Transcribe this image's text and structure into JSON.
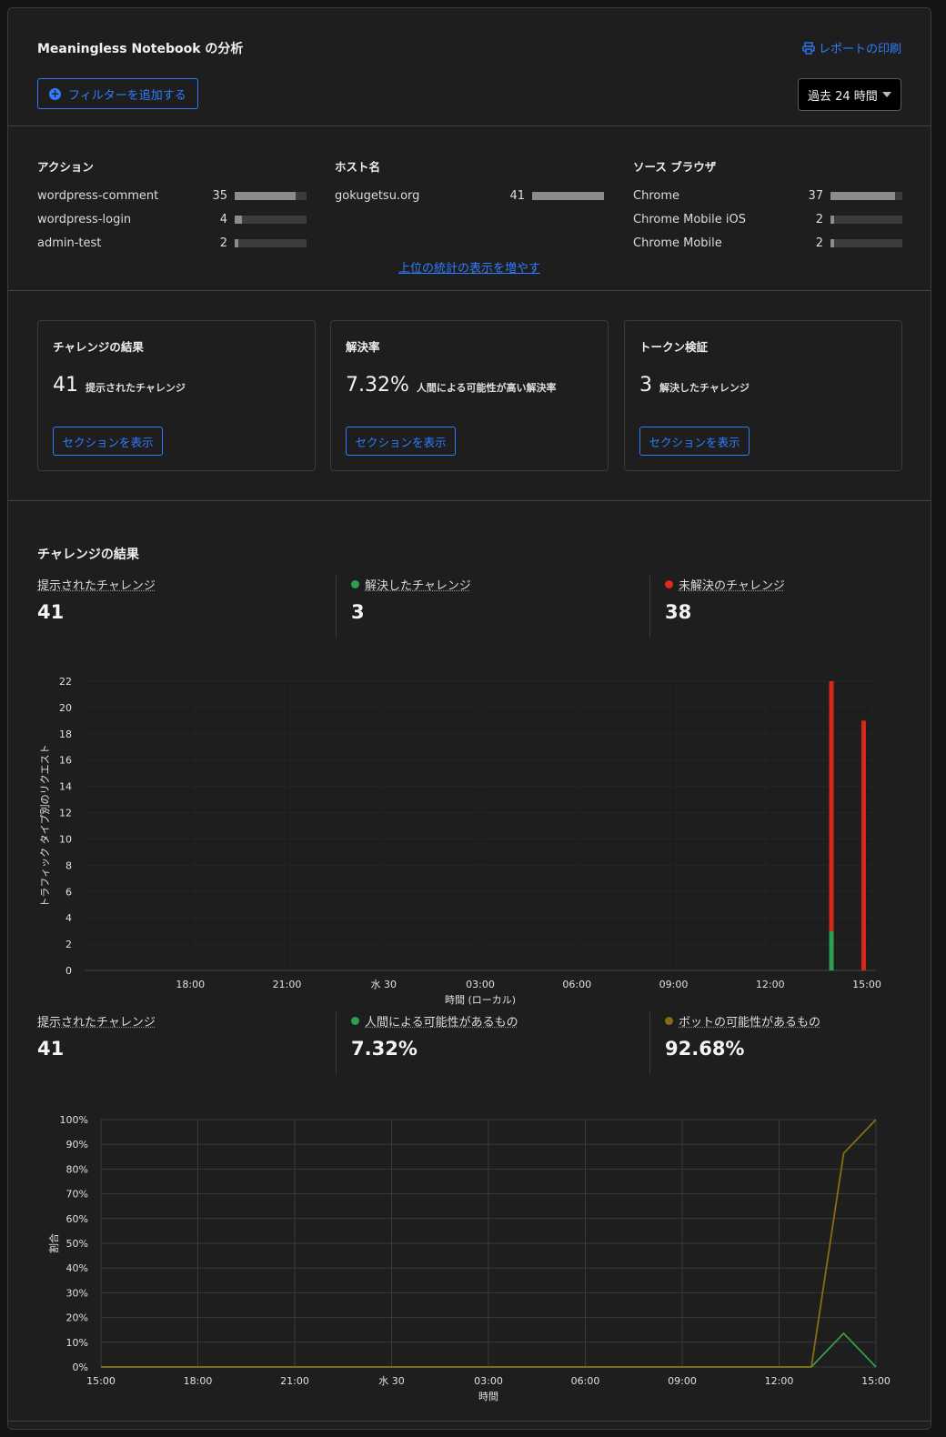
{
  "header": {
    "title": "Meaningless Notebook の分析",
    "print_label": "レポートの印刷",
    "add_filter_label": "フィルターを追加する",
    "time_range": "過去 24 時間"
  },
  "top_stats": {
    "columns": [
      {
        "title": "アクション",
        "rows": [
          {
            "name": "wordpress-comment",
            "count": "35",
            "share": 0.85
          },
          {
            "name": "wordpress-login",
            "count": "4",
            "share": 0.1
          },
          {
            "name": "admin-test",
            "count": "2",
            "share": 0.05
          }
        ]
      },
      {
        "title": "ホスト名",
        "rows": [
          {
            "name": "gokugetsu.org",
            "count": "41",
            "share": 1.0
          }
        ]
      },
      {
        "title": "ソース ブラウザ",
        "rows": [
          {
            "name": "Chrome",
            "count": "37",
            "share": 0.9
          },
          {
            "name": "Chrome Mobile iOS",
            "count": "2",
            "share": 0.05
          },
          {
            "name": "Chrome Mobile",
            "count": "2",
            "share": 0.05
          }
        ]
      }
    ],
    "more_label": "上位の統計の表示を増やす"
  },
  "cards": [
    {
      "title": "チャレンジの結果",
      "value": "41",
      "desc": "提示されたチャレンジ",
      "button": "セクションを表示"
    },
    {
      "title": "解決率",
      "value": "7.32%",
      "desc": "人間による可能性が高い解決率",
      "button": "セクションを表示"
    },
    {
      "title": "トークン検証",
      "value": "3",
      "desc": "解決したチャレンジ",
      "button": "セクションを表示"
    }
  ],
  "section": {
    "title": "チャレンジの結果",
    "kpis1": [
      {
        "label": "提示されたチャレンジ",
        "value": "41",
        "color": ""
      },
      {
        "label": "解決したチャレンジ",
        "value": "3",
        "color": "#2e9e4f"
      },
      {
        "label": "未解決のチャレンジ",
        "value": "38",
        "color": "#e02a1b"
      }
    ],
    "kpis2": [
      {
        "label": "提示されたチャレンジ",
        "value": "41",
        "color": ""
      },
      {
        "label": "人間による可能性があるもの",
        "value": "7.32%",
        "color": "#2e9e4f"
      },
      {
        "label": "ボットの可能性があるもの",
        "value": "92.68%",
        "color": "#8a6a14"
      }
    ]
  },
  "chart_data": [
    {
      "type": "bar",
      "stacked": true,
      "ylabel": "トラフィック タイプ別のリクエスト",
      "xlabel": "時間 (ローカル)",
      "ylim": [
        0,
        22
      ],
      "yticks": [
        0,
        2,
        4,
        6,
        8,
        10,
        12,
        14,
        16,
        18,
        20,
        22
      ],
      "x_range_hours": [
        15,
        39
      ],
      "xticks": [
        {
          "h": 18,
          "label": "18:00"
        },
        {
          "h": 21,
          "label": "21:00"
        },
        {
          "h": 24,
          "label": "水 30"
        },
        {
          "h": 27,
          "label": "03:00"
        },
        {
          "h": 30,
          "label": "06:00"
        },
        {
          "h": 33,
          "label": "09:00"
        },
        {
          "h": 36,
          "label": "12:00"
        },
        {
          "h": 39,
          "label": "15:00"
        }
      ],
      "bars": [
        {
          "h": 37.9,
          "solved": 3,
          "unsolved": 19
        },
        {
          "h": 38.9,
          "solved": 0,
          "unsolved": 19
        }
      ],
      "colors": {
        "solved": "#2e9e4f",
        "unsolved": "#d9261a"
      }
    },
    {
      "type": "line",
      "ylabel": "割合",
      "xlabel": "時間",
      "ylim": [
        0,
        100
      ],
      "yticks": [
        {
          "v": 0,
          "label": "0%"
        },
        {
          "v": 10,
          "label": "10%"
        },
        {
          "v": 20,
          "label": "20%"
        },
        {
          "v": 30,
          "label": "30%"
        },
        {
          "v": 40,
          "label": "40%"
        },
        {
          "v": 50,
          "label": "50%"
        },
        {
          "v": 60,
          "label": "60%"
        },
        {
          "v": 70,
          "label": "70%"
        },
        {
          "v": 80,
          "label": "80%"
        },
        {
          "v": 90,
          "label": "90%"
        },
        {
          "v": 100,
          "label": "100%"
        }
      ],
      "x_range_hours": [
        15,
        39
      ],
      "xticks": [
        {
          "h": 15,
          "label": "15:00"
        },
        {
          "h": 18,
          "label": "18:00"
        },
        {
          "h": 21,
          "label": "21:00"
        },
        {
          "h": 24,
          "label": "水 30"
        },
        {
          "h": 27,
          "label": "03:00"
        },
        {
          "h": 30,
          "label": "06:00"
        },
        {
          "h": 33,
          "label": "09:00"
        },
        {
          "h": 36,
          "label": "12:00"
        },
        {
          "h": 39,
          "label": "15:00"
        }
      ],
      "series": [
        {
          "name": "人間による可能性があるもの",
          "color": "#2e9e4f",
          "points": [
            [
              15,
              0
            ],
            [
              37,
              0
            ],
            [
              38,
              13.6
            ],
            [
              39,
              0
            ]
          ]
        },
        {
          "name": "ボットの可能性があるもの",
          "color": "#8a6a14",
          "points": [
            [
              15,
              0
            ],
            [
              37,
              0
            ],
            [
              38,
              86.4
            ],
            [
              39,
              100
            ]
          ]
        }
      ]
    }
  ]
}
